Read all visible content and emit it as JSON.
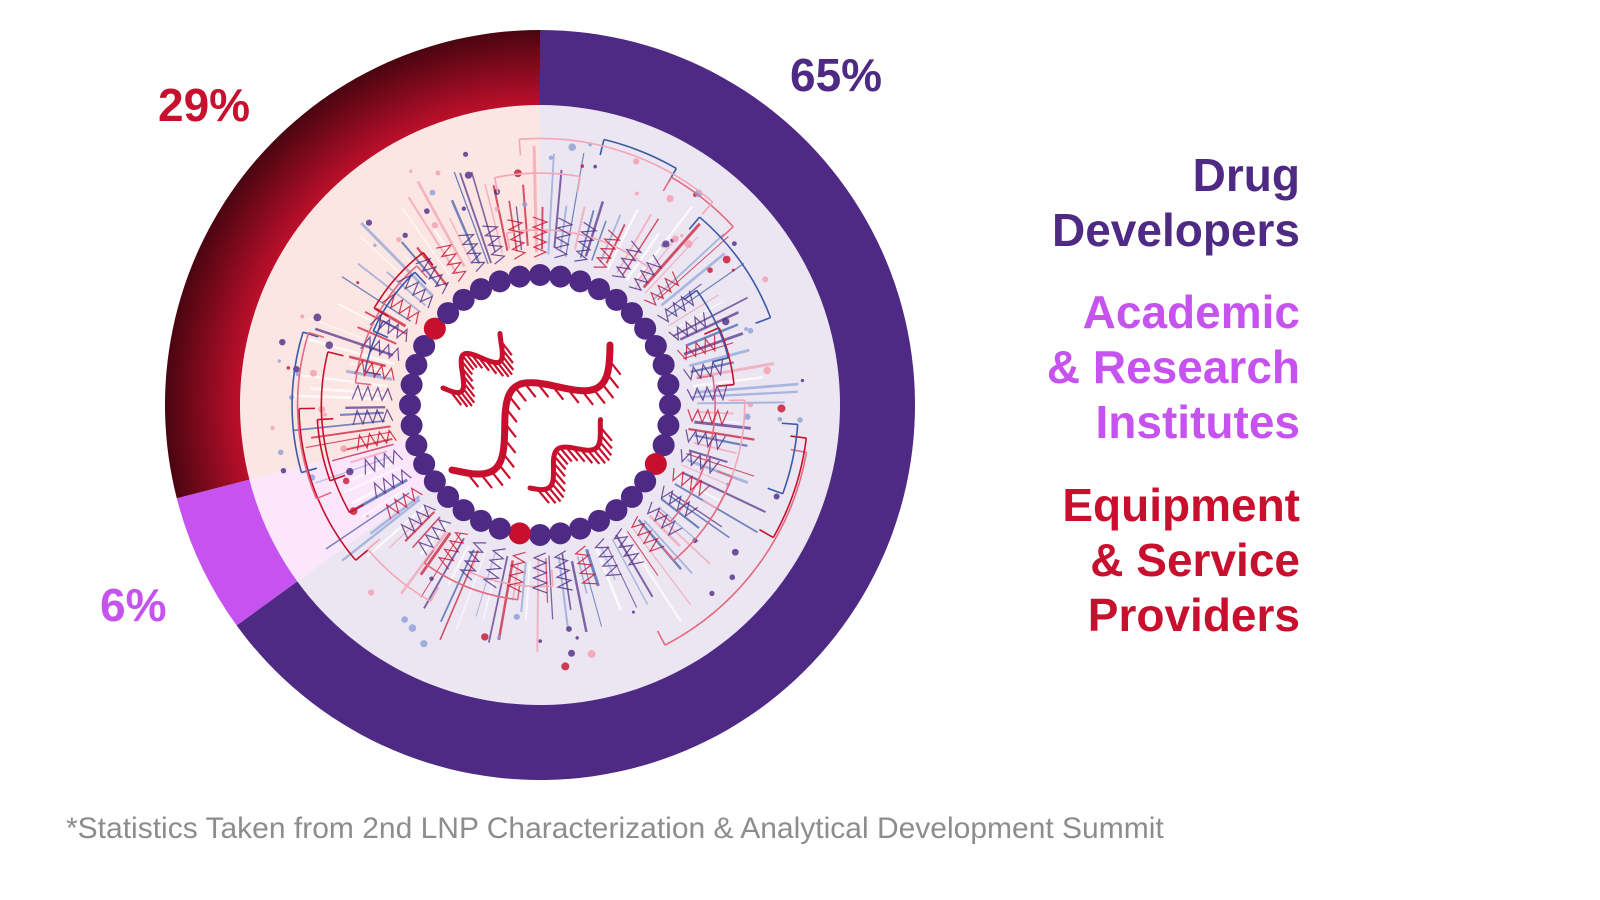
{
  "colors": {
    "drug": "#4e2a84",
    "academic": "#c653f0",
    "equipment": "#c8102e",
    "equipment_dark": "#5a0712",
    "footnote": "#8d8d8d"
  },
  "chart_data": {
    "type": "pie",
    "variant": "donut",
    "slices": [
      {
        "label": "Drug Developers",
        "value": 65,
        "display": "65%"
      },
      {
        "label": "Academic & Research Institutes",
        "value": 6,
        "display": "6%"
      },
      {
        "label": "Equipment & Service Providers",
        "value": 29,
        "display": "29%"
      }
    ],
    "legend_placement": "right"
  },
  "legend": {
    "drug": [
      "Drug",
      "Developers"
    ],
    "academic": [
      "Academic",
      "& Research",
      "Institutes"
    ],
    "equipment": [
      "Equipment",
      "& Service",
      "Providers"
    ]
  },
  "footnote": "*Statistics Taken from 2nd LNP Characterization & Analytical Development Summit"
}
